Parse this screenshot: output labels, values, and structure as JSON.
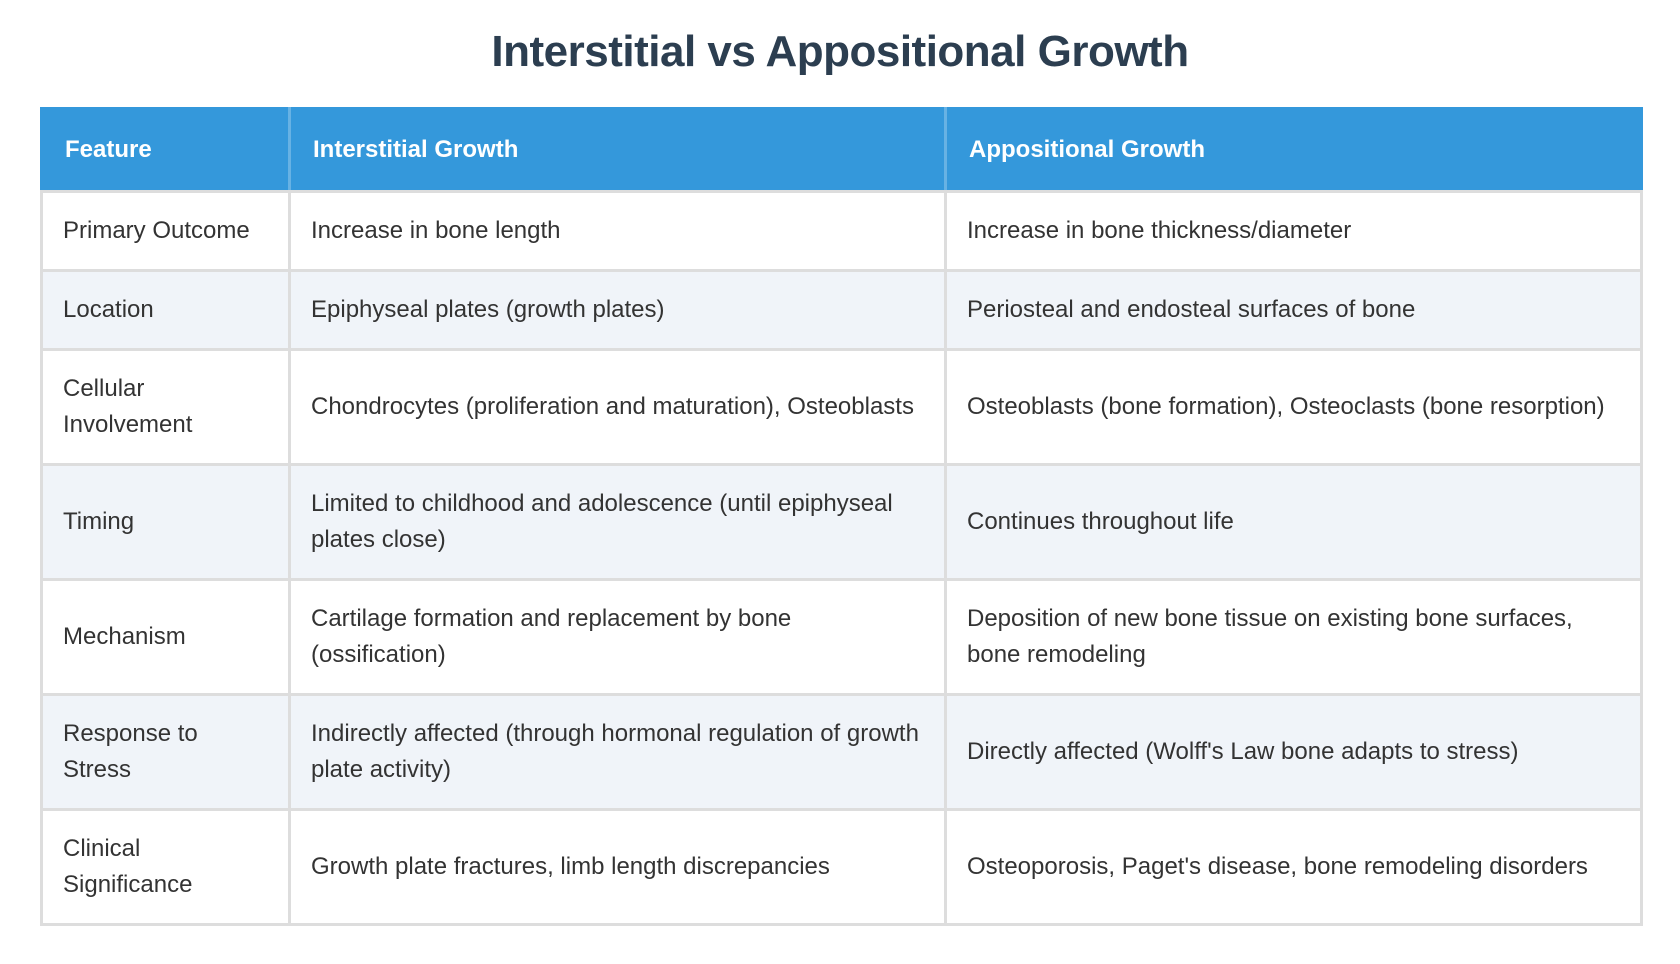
{
  "title": "Interstitial vs Appositional Growth",
  "table": {
    "headers": [
      "Feature",
      "Interstitial Growth",
      "Appositional Growth"
    ],
    "rows": [
      [
        "Primary Outcome",
        "Increase in bone length",
        "Increase in bone thickness/diameter"
      ],
      [
        "Location",
        "Epiphyseal plates (growth plates)",
        "Periosteal and endosteal surfaces of bone"
      ],
      [
        "Cellular Involvement",
        "Chondrocytes (proliferation and maturation), Osteoblasts",
        "Osteoblasts (bone formation), Osteoclasts (bone resorption)"
      ],
      [
        "Timing",
        "Limited to childhood and adolescence (until epiphyseal plates close)",
        "Continues throughout life"
      ],
      [
        "Mechanism",
        "Cartilage formation and replacement by bone (ossification)",
        "Deposition of new bone tissue on existing bone surfaces, bone remodeling"
      ],
      [
        "Response to Stress",
        "Indirectly affected (through hormonal regulation of growth plate activity)",
        "Directly affected (Wolff's Law bone adapts to stress)"
      ],
      [
        "Clinical Significance",
        "Growth plate fractures, limb length discrepancies",
        "Osteoporosis, Paget's disease, bone remodeling disorders"
      ]
    ]
  },
  "colors": {
    "title": "#2c3e50",
    "header_bg": "#3498db",
    "header_text": "#ffffff",
    "row_alt_bg": "#f0f4f9",
    "border": "#dddddd"
  }
}
